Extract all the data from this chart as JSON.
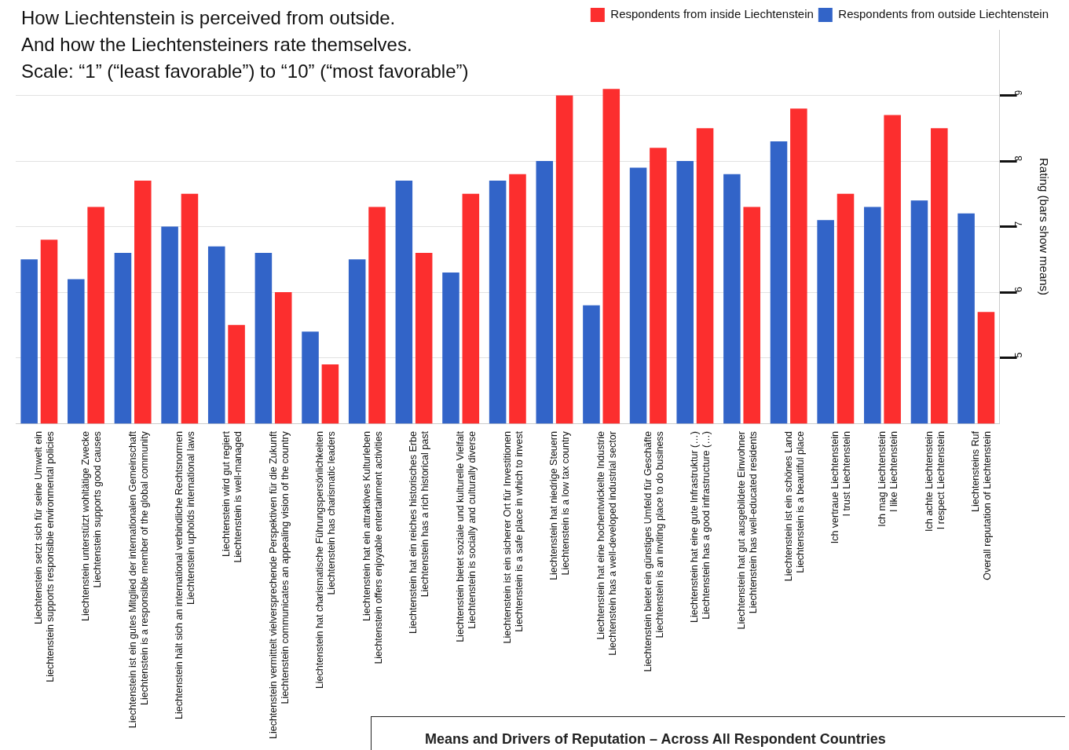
{
  "chart_data": {
    "type": "bar",
    "title": [
      "How Liechtenstein is perceived from outside.",
      "And how the Liechtensteiners rate themselves.",
      "Scale: “1” (“least favorable”) to “10” (“most favorable”)"
    ],
    "ylabel": "Rating (bars show means)",
    "annotations": [
      "Means and Drivers of Reputation – Across All Respondent Countries"
    ],
    "categories": [
      "Liechtenstein setzt sich für seine Umwelt ein\nLiechtenstein supports responsible environmental policies",
      "Liechtenstein unterstützt wohltätige Zwecke\nLiechtenstein supports good causes",
      "Liechtenstein ist ein gutes Mitglied der internationalen Gemeinschaft\nLiechtenstein is a responsible member of the global community",
      "Liechtenstein hält sich an international verbindliche Rechtsnormen\nLiechtenstein upholds international laws",
      "Liechtenstein wird gut regiert\nLiechtenstein is well-managed",
      "Liechtenstein vermittelt vielversprechende Perspektiven für die Zukunft\nLiechtenstein communicates an appealing vision of the country",
      "Liechtenstein hat charismatische Führungspersönlichkeiten\nLiechtenstein has charismatic leaders",
      "Liechtenstein hat ein attraktives Kulturleben\nLiechtenstein offers enjoyable entertainment activities",
      "Liechtenstein hat ein reiches historisches Erbe\nLiechtenstein has a rich historical past",
      "Liechtenstein bietet soziale und kulturelle Vielfalt\nLiechtenstein is socially and culturally diverse",
      "Liechtenstein ist ein sicherer Ort für Investitionen\nLiechtenstein is a safe place in which to invest",
      "Liechtenstein hat niedrige Steuern\nLiechtenstein is a low tax country",
      "Liechtenstein hat eine hochentwickelte Industrie\nLiechtenstein has a well-developed industrial sector",
      "Liechtenstein bietet ein günstiges Umfeld für Geschäfte\nLiechtenstein is an inviting place to do business",
      "Liechtenstein hat eine gute Infrastruktur (…)\nLiechtenstein has a good infrastructure (…)",
      "Liechtenstein hat gut ausgebildete Einwohner\nLiechtenstein has well-educated residents",
      "Liechtenstein ist ein schönes Land\nLiechtenstein is a beautiful place",
      "Ich vertraue Liechtenstein\nI trust Liechtenstein",
      "Ich mag Liechtenstein\nI like Liechtenstein",
      "Ich achte Liechtenstein\nI respect Liechtenstein",
      "Liechtensteins Ruf\nOverall reputation of Liechtenstein"
    ],
    "series": [
      {
        "name": "Respondents from outside Liechtenstein",
        "color": "#3264c8",
        "values": [
          6.5,
          6.2,
          6.6,
          7.0,
          6.7,
          6.6,
          5.4,
          6.5,
          7.7,
          6.3,
          7.7,
          8.0,
          5.8,
          7.9,
          8.0,
          7.8,
          8.3,
          7.1,
          7.3,
          7.4,
          7.2
        ]
      },
      {
        "name": "Respondents from inside Liechtenstein",
        "color": "#fc2e2e",
        "values": [
          6.8,
          7.3,
          7.7,
          7.5,
          5.5,
          6.0,
          4.9,
          7.3,
          6.6,
          7.5,
          7.8,
          9.0,
          9.1,
          8.2,
          8.5,
          7.3,
          8.8,
          7.5,
          8.7,
          8.5,
          5.7
        ]
      }
    ],
    "ylim": [
      4,
      10
    ],
    "yticks": [
      5,
      6,
      7,
      8,
      9
    ],
    "grid": "y",
    "legend": "top right"
  }
}
